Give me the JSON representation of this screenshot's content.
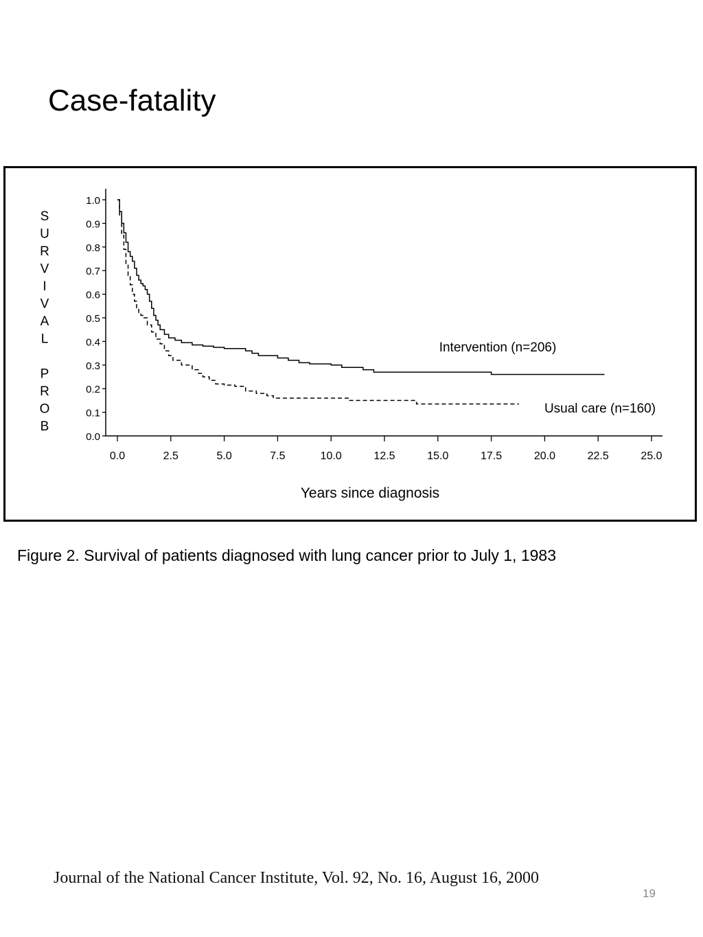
{
  "slide": {
    "title": "Case-fatality",
    "caption": "Figure 2. Survival of patients diagnosed with lung cancer prior to July 1, 1983",
    "citation": "Journal of the National Cancer Institute, Vol. 92, No. 16, August 16, 2000",
    "page_number": "19"
  },
  "chart_data": {
    "type": "line",
    "title": "",
    "xlabel": "Years since diagnosis",
    "ylabel": "SURVIVAL PROB",
    "ylabel_lines": [
      "S",
      "U",
      "R",
      "V",
      "I",
      "V",
      "A",
      "L",
      "",
      "P",
      "R",
      "O",
      "B"
    ],
    "xlim": [
      0,
      25
    ],
    "ylim": [
      0,
      1
    ],
    "grid": false,
    "xticks": [
      "0.0",
      "2.5",
      "5.0",
      "7.5",
      "10.0",
      "12.5",
      "15.0",
      "17.5",
      "20.0",
      "22.5",
      "25.0"
    ],
    "yticks": [
      "0.0",
      "0.1",
      "0.2",
      "0.3",
      "0.4",
      "0.5",
      "0.6",
      "0.7",
      "0.8",
      "0.9",
      "1.0"
    ],
    "series": [
      {
        "name": "Intervention (n=206)",
        "style": "solid",
        "step": true,
        "points": [
          [
            0.0,
            1.0
          ],
          [
            0.1,
            0.95
          ],
          [
            0.2,
            0.9
          ],
          [
            0.3,
            0.86
          ],
          [
            0.4,
            0.82
          ],
          [
            0.5,
            0.78
          ],
          [
            0.6,
            0.76
          ],
          [
            0.7,
            0.74
          ],
          [
            0.8,
            0.71
          ],
          [
            0.9,
            0.68
          ],
          [
            1.0,
            0.66
          ],
          [
            1.1,
            0.645
          ],
          [
            1.2,
            0.635
          ],
          [
            1.3,
            0.62
          ],
          [
            1.4,
            0.6
          ],
          [
            1.5,
            0.57
          ],
          [
            1.6,
            0.54
          ],
          [
            1.7,
            0.51
          ],
          [
            1.8,
            0.49
          ],
          [
            1.9,
            0.47
          ],
          [
            2.0,
            0.45
          ],
          [
            2.2,
            0.43
          ],
          [
            2.4,
            0.415
          ],
          [
            2.7,
            0.405
          ],
          [
            3.0,
            0.395
          ],
          [
            3.5,
            0.385
          ],
          [
            4.0,
            0.38
          ],
          [
            4.5,
            0.375
          ],
          [
            5.0,
            0.37
          ],
          [
            5.5,
            0.37
          ],
          [
            6.0,
            0.36
          ],
          [
            6.3,
            0.35
          ],
          [
            6.6,
            0.34
          ],
          [
            7.5,
            0.33
          ],
          [
            8.0,
            0.32
          ],
          [
            8.5,
            0.31
          ],
          [
            9.0,
            0.305
          ],
          [
            10.0,
            0.3
          ],
          [
            10.5,
            0.29
          ],
          [
            11.5,
            0.28
          ],
          [
            12.0,
            0.27
          ],
          [
            17.5,
            0.26
          ],
          [
            22.8,
            0.26
          ]
        ]
      },
      {
        "name": "Usual care (n=160)",
        "style": "dashed",
        "step": true,
        "points": [
          [
            0.0,
            1.0
          ],
          [
            0.1,
            0.93
          ],
          [
            0.2,
            0.85
          ],
          [
            0.3,
            0.79
          ],
          [
            0.4,
            0.73
          ],
          [
            0.5,
            0.68
          ],
          [
            0.6,
            0.64
          ],
          [
            0.7,
            0.6
          ],
          [
            0.8,
            0.57
          ],
          [
            0.9,
            0.54
          ],
          [
            1.0,
            0.52
          ],
          [
            1.1,
            0.51
          ],
          [
            1.2,
            0.5
          ],
          [
            1.4,
            0.47
          ],
          [
            1.6,
            0.44
          ],
          [
            1.8,
            0.41
          ],
          [
            2.0,
            0.39
          ],
          [
            2.2,
            0.36
          ],
          [
            2.4,
            0.34
          ],
          [
            2.6,
            0.32
          ],
          [
            3.0,
            0.3
          ],
          [
            3.5,
            0.28
          ],
          [
            3.8,
            0.265
          ],
          [
            4.0,
            0.25
          ],
          [
            4.3,
            0.235
          ],
          [
            4.6,
            0.22
          ],
          [
            5.0,
            0.215
          ],
          [
            5.5,
            0.21
          ],
          [
            6.0,
            0.19
          ],
          [
            6.5,
            0.18
          ],
          [
            7.0,
            0.17
          ],
          [
            7.3,
            0.16
          ],
          [
            7.8,
            0.16
          ],
          [
            10.8,
            0.15
          ],
          [
            11.0,
            0.15
          ],
          [
            14.0,
            0.135
          ],
          [
            18.8,
            0.135
          ]
        ]
      }
    ],
    "annotations": [
      {
        "text": "Intervention (n=206)",
        "series": 0
      },
      {
        "text": "Usual care (n=160)",
        "series": 1
      }
    ]
  }
}
